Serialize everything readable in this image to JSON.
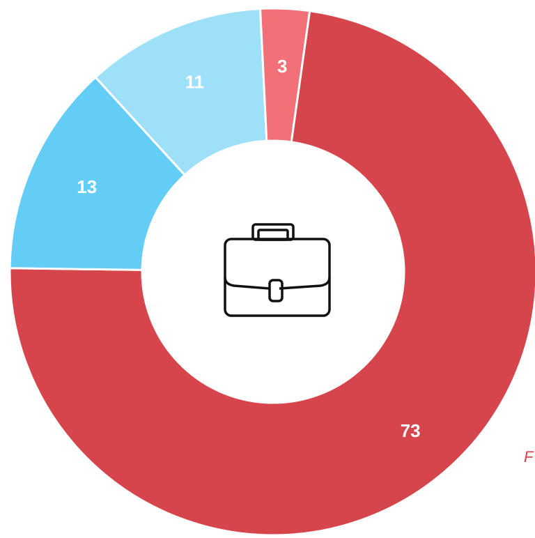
{
  "chart_data": {
    "type": "donut",
    "categories": [
      null,
      null,
      null,
      null
    ],
    "values": [
      73,
      13,
      11,
      3
    ],
    "colors": [
      "#d6454b",
      "#63cdf5",
      "#9ee0f8",
      "#f27077"
    ],
    "annotation": "F"
  }
}
